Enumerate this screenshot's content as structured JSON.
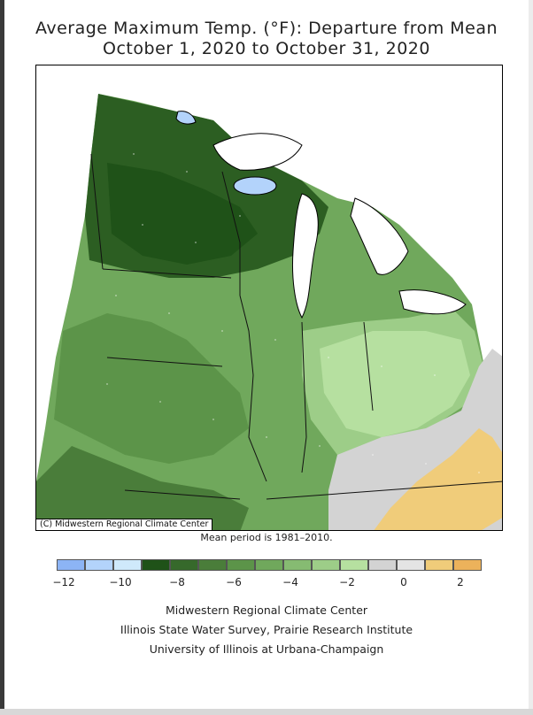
{
  "title": {
    "line1": "Average Maximum Temp. (°F): Departure from Mean",
    "line2": "October 1, 2020 to October 31, 2020"
  },
  "map": {
    "copyright": "(C) Midwestern Regional Climate Center",
    "region": "Midwest United States",
    "shading": "departure from mean"
  },
  "mean_period": "Mean period is 1981–2010.",
  "legend": {
    "swatches": [
      {
        "range": "-12 to -11",
        "color": "#8cb4f5"
      },
      {
        "range": "-11 to -10",
        "color": "#b3d3fb"
      },
      {
        "range": "-10 to -9",
        "color": "#cfe9fb"
      },
      {
        "range": "-9 to -8",
        "color": "#1f5218"
      },
      {
        "range": "-8 to -7",
        "color": "#36692b"
      },
      {
        "range": "-7 to -6",
        "color": "#4a7d3a"
      },
      {
        "range": "-6 to -5",
        "color": "#5c9449"
      },
      {
        "range": "-5 to -4",
        "color": "#70a85c"
      },
      {
        "range": "-4 to -3",
        "color": "#86bb72"
      },
      {
        "range": "-3 to -2",
        "color": "#9dcd88"
      },
      {
        "range": "-2 to -1",
        "color": "#b6e0a0"
      },
      {
        "range": "-1 to 0",
        "color": "#d3d3d3"
      },
      {
        "range": "0 to 1",
        "color": "#e4e4e4"
      },
      {
        "range": "1 to 2",
        "color": "#f0cc7a"
      },
      {
        "range": "2 to 3",
        "color": "#ecb25b"
      }
    ],
    "tick_labels": [
      "-12",
      "-10",
      "-8",
      "-6",
      "-4",
      "-2",
      "0",
      "2"
    ]
  },
  "credits": {
    "line1": "Midwestern Regional Climate Center",
    "line2": "Illinois State Water Survey, Prairie Research Institute",
    "line3": "University of Illinois at Urbana-Champaign"
  }
}
